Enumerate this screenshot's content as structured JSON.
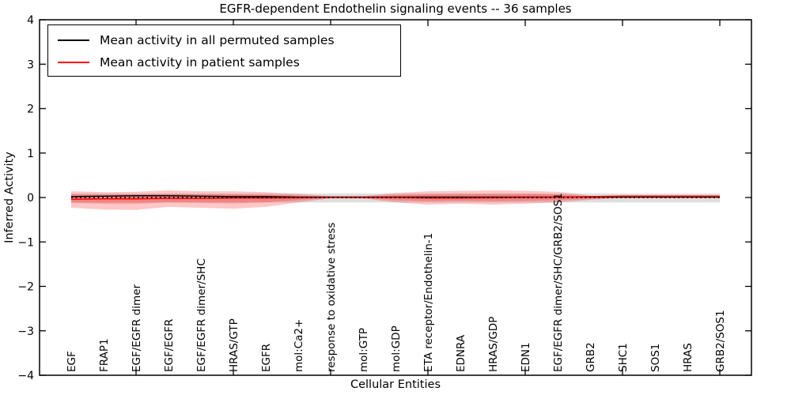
{
  "chart_data": {
    "type": "line",
    "title": "EGFR-dependent Endothelin signaling events -- 36 samples",
    "xlabel": "Cellular Entities",
    "ylabel": "Inferred Activity",
    "ylim": [
      -4,
      4
    ],
    "yticks": [
      -4,
      -3,
      -2,
      -1,
      0,
      1,
      2,
      3,
      4
    ],
    "xtick_indices": [
      2,
      5,
      8,
      11,
      14,
      17,
      20
    ],
    "grid": false,
    "legend_position": "upper left",
    "legend": [
      {
        "label": "Mean activity in all permuted samples",
        "color": "#000000"
      },
      {
        "label": "Mean activity in patient samples",
        "color": "#ff0000"
      }
    ],
    "categories": [
      "EGF",
      "FRAP1",
      "EGF/EGFR dimer",
      "EGF/EGFR",
      "EGF/EGFR dimer/SHC",
      "HRAS/GTP",
      "EGFR",
      "mol:Ca2+",
      "response to oxidative stress",
      "mol:GTP",
      "mol:GDP",
      "ETA receptor/Endothelin-1",
      "EDNRA",
      "HRAS/GDP",
      "EDN1",
      "EGF/EGFR dimer/SHC/GRB2/SOS1",
      "GRB2",
      "SHC1",
      "SOS1",
      "HRAS",
      "GRB2/SOS1"
    ],
    "series": [
      {
        "name": "Mean activity in all permuted samples",
        "color": "#000000",
        "style": "solid",
        "width": 1.4,
        "values": [
          0.02,
          0.03,
          0.04,
          0.04,
          0.03,
          0.02,
          0.02,
          0.01,
          0.01,
          0.01,
          0.01,
          0.01,
          0.01,
          0.01,
          0.01,
          0.01,
          0.01,
          0.01,
          0.01,
          0.01,
          0.01
        ]
      },
      {
        "name": "Mean activity in patient samples",
        "color": "#ff0000",
        "style": "solid",
        "width": 1.6,
        "values": [
          -0.04,
          -0.03,
          -0.03,
          -0.02,
          -0.02,
          -0.01,
          -0.01,
          -0.005,
          0,
          0,
          0,
          -0.01,
          -0.01,
          -0.005,
          0,
          0.005,
          0.02,
          0.03,
          0.03,
          0.03,
          0.03
        ]
      },
      {
        "name": "zero baseline",
        "color": "#000000",
        "style": "dotted",
        "width": 1.8,
        "values": [
          0,
          0,
          0,
          0,
          0,
          0,
          0,
          0,
          0,
          0,
          0,
          0,
          0,
          0,
          0,
          0,
          0,
          0,
          0,
          0,
          0
        ]
      }
    ],
    "bands": [
      {
        "name": "permuted samples range",
        "color": "#000000",
        "opacity": 0.13,
        "upper": [
          0.09,
          0.09,
          0.09,
          0.09,
          0.09,
          0.09,
          0.09,
          0.09,
          0.09,
          0.09,
          0.09,
          0.09,
          0.09,
          0.09,
          0.09,
          0.09,
          0.09,
          0.09,
          0.09,
          0.09,
          0.09
        ],
        "lower": [
          -0.11,
          -0.11,
          -0.11,
          -0.11,
          -0.11,
          -0.11,
          -0.11,
          -0.11,
          -0.11,
          -0.11,
          -0.11,
          -0.11,
          -0.11,
          -0.11,
          -0.11,
          -0.11,
          -0.11,
          -0.11,
          -0.11,
          -0.11,
          -0.11
        ]
      },
      {
        "name": "patient samples outer range",
        "color": "#ff0000",
        "opacity": 0.22,
        "upper": [
          0.14,
          0.12,
          0.13,
          0.16,
          0.14,
          0.14,
          0.12,
          0.08,
          0.03,
          0.03,
          0.1,
          0.14,
          0.15,
          0.16,
          0.15,
          0.13,
          0.04,
          0.01,
          0.01,
          0.01,
          0.01
        ],
        "lower": [
          -0.23,
          -0.27,
          -0.28,
          -0.21,
          -0.23,
          -0.25,
          -0.21,
          -0.11,
          -0.02,
          -0.02,
          -0.11,
          -0.16,
          -0.14,
          -0.16,
          -0.14,
          -0.11,
          -0.05,
          -0.01,
          -0.01,
          -0.01,
          -0.01
        ]
      },
      {
        "name": "patient samples inner range",
        "color": "#ff0000",
        "opacity": 0.22,
        "upper": [
          0.07,
          0.06,
          0.07,
          0.08,
          0.07,
          0.07,
          0.06,
          0.04,
          0.015,
          0.015,
          0.05,
          0.07,
          0.08,
          0.08,
          0.08,
          0.07,
          0.02,
          0.005,
          0.005,
          0.005,
          0.005
        ],
        "lower": [
          -0.12,
          -0.14,
          -0.14,
          -0.11,
          -0.12,
          -0.13,
          -0.11,
          -0.06,
          -0.01,
          -0.01,
          -0.06,
          -0.08,
          -0.07,
          -0.08,
          -0.07,
          -0.06,
          -0.03,
          -0.005,
          -0.005,
          -0.005,
          -0.005
        ]
      }
    ]
  }
}
